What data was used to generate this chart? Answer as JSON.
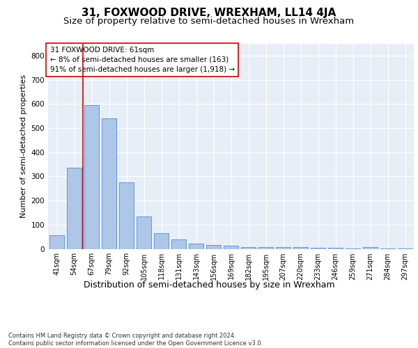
{
  "title": "31, FOXWOOD DRIVE, WREXHAM, LL14 4JA",
  "subtitle": "Size of property relative to semi-detached houses in Wrexham",
  "xlabel": "Distribution of semi-detached houses by size in Wrexham",
  "ylabel": "Number of semi-detached properties",
  "categories": [
    "41sqm",
    "54sqm",
    "67sqm",
    "79sqm",
    "92sqm",
    "105sqm",
    "118sqm",
    "131sqm",
    "143sqm",
    "156sqm",
    "169sqm",
    "182sqm",
    "195sqm",
    "207sqm",
    "220sqm",
    "233sqm",
    "246sqm",
    "259sqm",
    "271sqm",
    "284sqm",
    "297sqm"
  ],
  "values": [
    55,
    335,
    595,
    540,
    275,
    135,
    65,
    40,
    22,
    17,
    13,
    8,
    6,
    6,
    7,
    5,
    5,
    1,
    8,
    1,
    1
  ],
  "bar_color": "#aec6e8",
  "bar_edge_color": "#4a90d9",
  "highlight_line_color": "#cc0000",
  "annotation_text": "31 FOXWOOD DRIVE: 61sqm\n← 8% of semi-detached houses are smaller (163)\n91% of semi-detached houses are larger (1,918) →",
  "annotation_box_color": "#ffffff",
  "annotation_box_edge_color": "#cc0000",
  "ylim": [
    0,
    850
  ],
  "yticks": [
    0,
    100,
    200,
    300,
    400,
    500,
    600,
    700,
    800
  ],
  "background_color": "#e8eef7",
  "grid_color": "#ffffff",
  "footnote": "Contains HM Land Registry data © Crown copyright and database right 2024.\nContains public sector information licensed under the Open Government Licence v3.0.",
  "title_fontsize": 11,
  "subtitle_fontsize": 9.5,
  "xlabel_fontsize": 9,
  "ylabel_fontsize": 8,
  "annotation_fontsize": 7.5,
  "tick_fontsize": 7,
  "ytick_fontsize": 7.5,
  "footnote_fontsize": 6
}
